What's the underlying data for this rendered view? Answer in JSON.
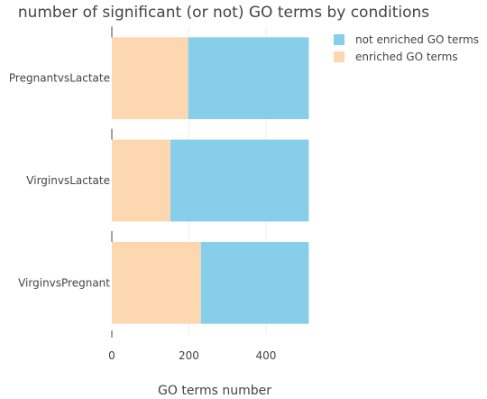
{
  "chart_data": {
    "type": "bar",
    "orientation": "horizontal",
    "stacked": true,
    "title": "number of significant (or not) GO terms by conditions",
    "xlabel": "GO terms number",
    "ylabel": "",
    "xlim": [
      0,
      510
    ],
    "xticks": [
      0,
      200,
      400
    ],
    "categories": [
      "PregnantvsLactate",
      "VirginvsLactate",
      "VirginvsPregnant"
    ],
    "series": [
      {
        "name": "enriched GO terms",
        "color": "#FDD7B0",
        "values": [
          198,
          152,
          231
        ]
      },
      {
        "name": "not enriched GO terms",
        "color": "#87CEEB",
        "values": [
          313,
          359,
          280
        ]
      }
    ],
    "legend": {
      "position": "top-right",
      "order": [
        "not enriched GO terms",
        "enriched GO terms"
      ]
    },
    "grid": {
      "x": true,
      "y": false,
      "color": "#eeeeee"
    }
  }
}
